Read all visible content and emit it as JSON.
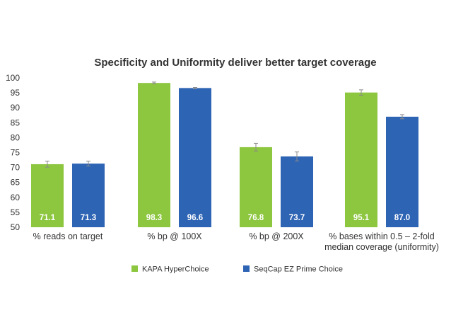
{
  "chart_data": {
    "type": "bar",
    "title": "Specificity and Uniformity deliver better target coverage",
    "xlabel": "",
    "ylabel": "",
    "ylim": [
      50,
      100
    ],
    "yticks": [
      50,
      55,
      60,
      65,
      70,
      75,
      80,
      85,
      90,
      95,
      100
    ],
    "grid": false,
    "legend_position": "bottom",
    "categories": [
      [
        "% reads on target"
      ],
      [
        "% bp @ 100X"
      ],
      [
        "% bp @ 200X"
      ],
      [
        "% bases within 0.5 – 2-fold",
        "median coverage (uniformity)"
      ]
    ],
    "series": [
      {
        "name": "KAPA HyperChoice",
        "color": "#8dc63f",
        "values": [
          71.1,
          98.3,
          76.8,
          95.1
        ],
        "labels": [
          "71.1",
          "98.3",
          "76.8",
          "95.1"
        ],
        "errors": [
          1.0,
          0.3,
          1.3,
          0.9
        ]
      },
      {
        "name": "SeqCap EZ Prime Choice",
        "color": "#2e64b4",
        "values": [
          71.3,
          96.6,
          73.7,
          87.0
        ],
        "labels": [
          "71.3",
          "96.6",
          "73.7",
          "87.0"
        ],
        "errors": [
          0.8,
          0.2,
          1.5,
          0.7
        ]
      }
    ]
  }
}
